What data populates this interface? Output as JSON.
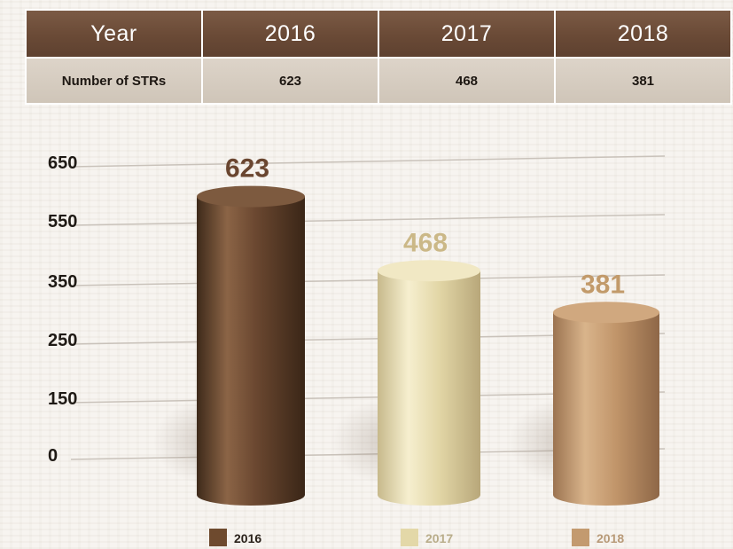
{
  "table": {
    "header_label": "Year",
    "years": [
      "2016",
      "2017",
      "2018"
    ],
    "row_label": "Number of STRs",
    "row_values": [
      "623",
      "468",
      "381"
    ]
  },
  "chart_data": {
    "type": "bar",
    "categories": [
      "2016",
      "2017",
      "2018"
    ],
    "values": [
      623,
      468,
      381
    ],
    "data_labels": [
      "623",
      "468",
      "381"
    ],
    "y_tick_labels": [
      "0",
      "150",
      "250",
      "350",
      "550",
      "650"
    ],
    "legend": [
      "2016",
      "2017",
      "2018"
    ],
    "legend_placement": "bottom",
    "grid": true,
    "colors": [
      "#6e4a2e",
      "#e3d8a8",
      "#c39a6f"
    ],
    "label_colors": [
      "#6a4630",
      "#cbb887",
      "#c29a6a"
    ]
  }
}
